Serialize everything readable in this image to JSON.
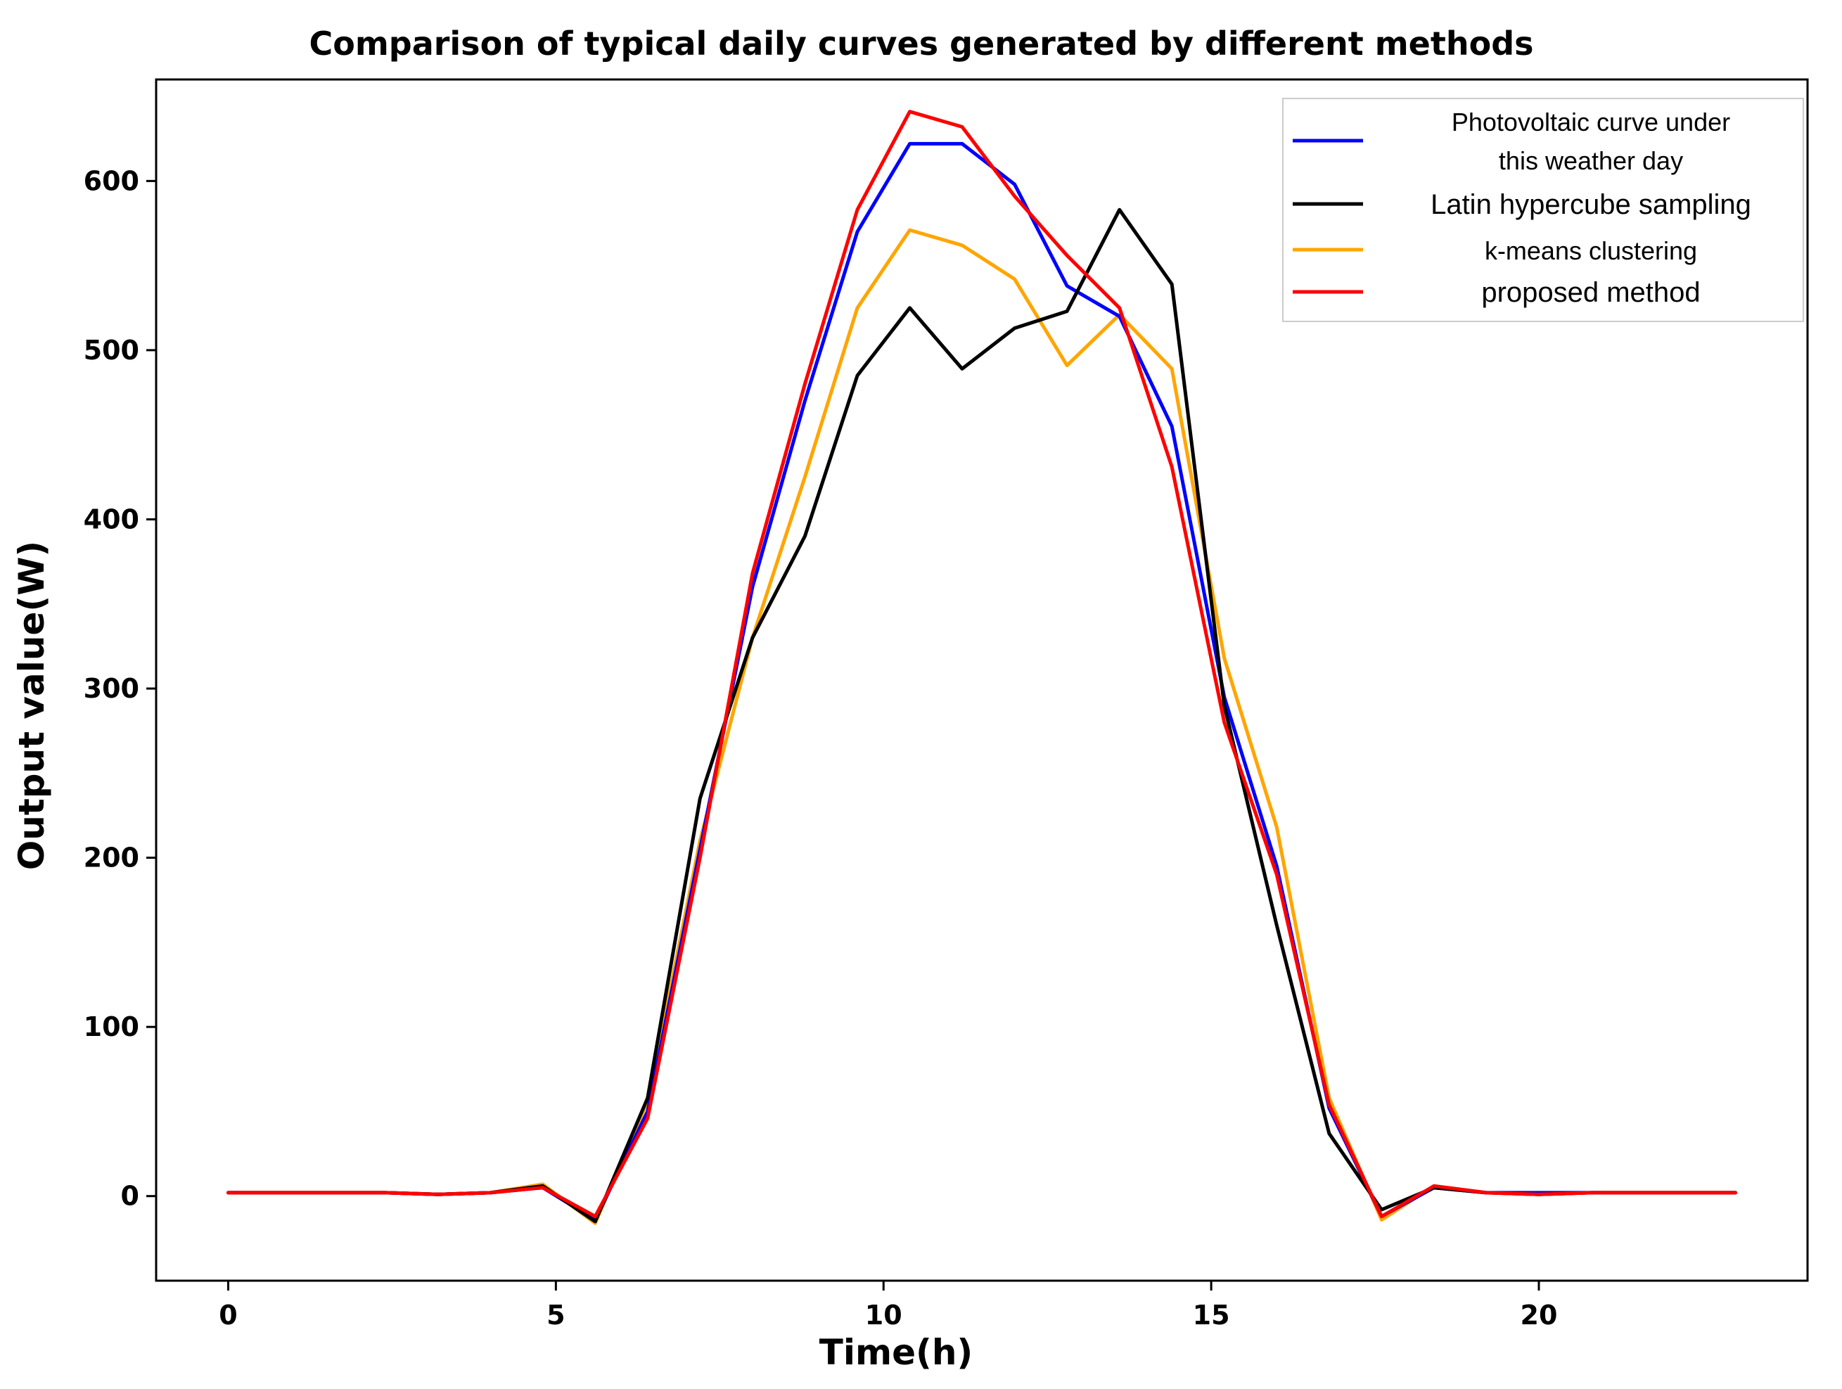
{
  "chart_data": {
    "type": "line",
    "title": "Comparison of typical daily curves generated by different methods",
    "xlabel": "Time(h)",
    "ylabel": "Output value(W)",
    "xlim": [
      -1.1,
      24.1
    ],
    "ylim": [
      -50,
      660
    ],
    "xticks": [
      0,
      5,
      10,
      15,
      20
    ],
    "yticks": [
      0,
      100,
      200,
      300,
      400,
      500,
      600
    ],
    "grid": false,
    "legend_position": "top-right",
    "x": [
      0,
      0.8,
      1.6,
      2.4,
      3.2,
      4.0,
      4.8,
      5.6,
      6.4,
      7.2,
      8.0,
      8.8,
      9.6,
      10.4,
      11.2,
      12.0,
      12.8,
      13.6,
      14.4,
      15.2,
      16.0,
      16.8,
      17.6,
      18.4,
      19.2,
      20.0,
      20.8,
      21.6,
      22.4,
      23.0
    ],
    "series": [
      {
        "name": "Photovoltaic curve under this weather day",
        "legend_lines": [
          "Photovoltaic curve under",
          "this weather day"
        ],
        "color": "#0000ff",
        "values": [
          2,
          2,
          2,
          2,
          1,
          2,
          5,
          -14,
          50,
          205,
          360,
          470,
          570,
          622,
          622,
          598,
          538,
          520,
          455,
          295,
          195,
          52,
          -12,
          5,
          2,
          2,
          2,
          2,
          2,
          2
        ]
      },
      {
        "name": "Latin hypercube sampling",
        "legend_lines": [
          "Latin hypercube sampling"
        ],
        "color": "#000000",
        "values": [
          2,
          2,
          2,
          2,
          1,
          2,
          6,
          -15,
          58,
          235,
          330,
          390,
          485,
          525,
          489,
          513,
          523,
          583,
          539,
          290,
          160,
          37,
          -8,
          5,
          2,
          1,
          2,
          2,
          2,
          2
        ]
      },
      {
        "name": "k-means clustering",
        "legend_lines": [
          "k-means clustering"
        ],
        "color": "#ffa500",
        "values": [
          2,
          2,
          2,
          2,
          1,
          2,
          7,
          -16,
          56,
          210,
          330,
          425,
          525,
          571,
          562,
          542,
          491,
          521,
          489,
          318,
          218,
          58,
          -14,
          6,
          2,
          1,
          2,
          2,
          2,
          2
        ]
      },
      {
        "name": "proposed method",
        "legend_lines": [
          "proposed method"
        ],
        "color": "#ff0000",
        "values": [
          2,
          2,
          2,
          2,
          1,
          2,
          5,
          -12,
          46,
          200,
          368,
          480,
          583,
          641,
          632,
          591,
          556,
          525,
          431,
          280,
          190,
          54,
          -12,
          6,
          2,
          1,
          2,
          2,
          2,
          2
        ]
      }
    ]
  }
}
